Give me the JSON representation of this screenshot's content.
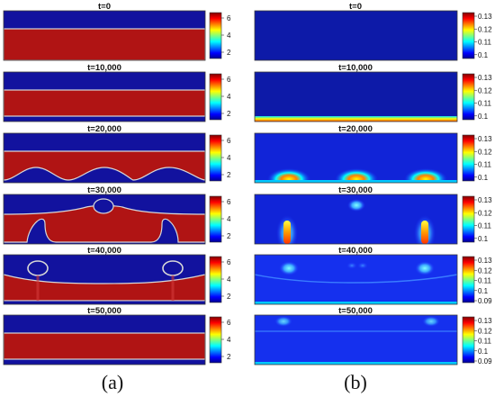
{
  "colors": {
    "fluid_high": "#b01414",
    "fluid_low": "#12129e",
    "interface": "#d7d7d7",
    "frame": "#3a3a3a",
    "jet": [
      "#00008f",
      "#0000ff",
      "#00ffff",
      "#ffff00",
      "#ff0000",
      "#800000"
    ]
  },
  "columns": [
    {
      "id": "a",
      "caption": "(a)",
      "colorbar_ticks": [
        "6",
        "4",
        "2"
      ],
      "panels": [
        {
          "title": "t=0"
        },
        {
          "title": "t=10,000"
        },
        {
          "title": "t=20,000"
        },
        {
          "title": "t=30,000"
        },
        {
          "title": "t=40,000"
        },
        {
          "title": "t=50,000"
        }
      ]
    },
    {
      "id": "b",
      "caption": "(b)",
      "panels": [
        {
          "title": "t=0",
          "colorbar_ticks": [
            "0.13",
            "0.12",
            "0.11",
            "0.1"
          ]
        },
        {
          "title": "t=10,000",
          "colorbar_ticks": [
            "0.13",
            "0.12",
            "0.11",
            "0.1"
          ]
        },
        {
          "title": "t=20,000",
          "colorbar_ticks": [
            "0.13",
            "0.12",
            "0.11",
            "0.1"
          ]
        },
        {
          "title": "t=30,000",
          "colorbar_ticks": [
            "0.13",
            "0.12",
            "0.11",
            "0.1"
          ]
        },
        {
          "title": "t=40,000",
          "colorbar_ticks": [
            "0.13",
            "0.12",
            "0.11",
            "0.1",
            "0.09"
          ]
        },
        {
          "title": "t=50,000",
          "colorbar_ticks": [
            "0.13",
            "0.12",
            "0.11",
            "0.1",
            "0.09"
          ]
        }
      ]
    }
  ]
}
